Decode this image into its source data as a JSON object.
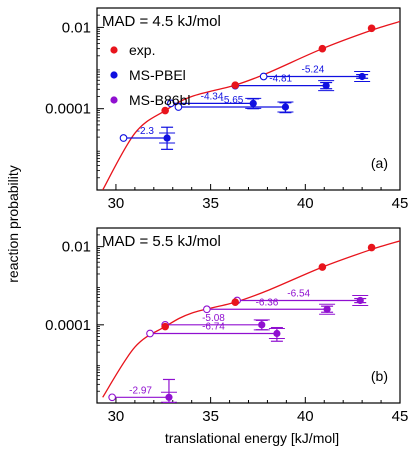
{
  "figure": {
    "ylabel": "reaction probability",
    "xlabel": "translational energy [kJ/mol]"
  },
  "chart_data": [
    {
      "type": "scatter",
      "panel_label": "(a)",
      "mad_text": "MAD = 4.5 kJ/mol",
      "x_ticks": [
        "30",
        "35",
        "40",
        "45"
      ],
      "y_ticks": [
        "0.01",
        "0.0001"
      ],
      "xlim": [
        29,
        45
      ],
      "ylim": [
        1e-06,
        0.03
      ],
      "y_scale": "log",
      "legend": {
        "placement": "top-left",
        "entries": [
          {
            "label": "exp.",
            "color": "#e8141c"
          },
          {
            "label": "MS-PBEl",
            "color": "#1010e0"
          },
          {
            "label": "MS-B86bl",
            "color": "#9010d0"
          }
        ]
      },
      "fit_curve": {
        "color": "#e8141c",
        "x": [
          29.3,
          31,
          32.6,
          34,
          36.3,
          38,
          40.9,
          43.5,
          45
        ],
        "y": [
          1e-06,
          2.5e-05,
          9e-05,
          0.0002,
          0.00038,
          0.00075,
          0.003,
          0.0085,
          0.014
        ]
      },
      "exp_points": {
        "x": [
          32.6,
          36.3,
          40.9,
          43.5
        ],
        "y": [
          9e-05,
          0.00038,
          0.003,
          0.0095
        ]
      },
      "series": [
        {
          "name": "MS-PBEl",
          "color": "#1010e0",
          "points": [
            {
              "x_shift": 30.4,
              "x_calc": 32.7,
              "y": 1.9e-05,
              "yerr_hi": 3.5e-05,
              "yerr_lo": 1e-05,
              "label": "-2.3"
            },
            {
              "x_shift": 32.9,
              "x_calc": 37.25,
              "y": 0.000135,
              "yerr_hi": 0.000175,
              "yerr_lo": 0.0001,
              "label": "-4.34"
            },
            {
              "x_shift": 33.3,
              "x_calc": 38.95,
              "y": 0.00011,
              "yerr_hi": 0.00014,
              "yerr_lo": 8e-05,
              "label": "-5.65"
            },
            {
              "x_shift": 36.3,
              "x_calc": 41.1,
              "y": 0.00037,
              "yerr_hi": 0.00044,
              "yerr_lo": 0.00031,
              "label": "-4.81"
            },
            {
              "x_shift": 37.8,
              "x_calc": 43.0,
              "y": 0.00062,
              "yerr_hi": 0.00069,
              "yerr_lo": 0.00056,
              "label": "-5.24"
            }
          ]
        }
      ]
    },
    {
      "type": "scatter",
      "panel_label": "(b)",
      "mad_text": "MAD = 5.5 kJ/mol",
      "x_ticks": [
        "30",
        "35",
        "40",
        "45"
      ],
      "y_ticks": [
        "0.01",
        "0.0001"
      ],
      "xlim": [
        29,
        45
      ],
      "ylim": [
        1e-06,
        0.03
      ],
      "y_scale": "log",
      "fit_curve": {
        "color": "#e8141c",
        "x": [
          29.3,
          31,
          32.6,
          34,
          36.3,
          38,
          40.9,
          43.5,
          45
        ],
        "y": [
          1.4e-06,
          2.7e-05,
          9e-05,
          0.0002,
          0.00038,
          0.00075,
          0.003,
          0.0085,
          0.014
        ]
      },
      "exp_points": {
        "x": [
          32.6,
          36.3,
          40.9,
          43.5
        ],
        "y": [
          9e-05,
          0.00038,
          0.003,
          0.0095
        ]
      },
      "series": [
        {
          "name": "MS-B86bl",
          "color": "#9010d0",
          "points": [
            {
              "x_shift": 29.8,
              "x_calc": 32.8,
              "y": 1.4e-06,
              "yerr_hi": 4e-06,
              "yerr_lo": 1e-06,
              "label": "-2.97"
            },
            {
              "x_shift": 31.8,
              "x_calc": 38.5,
              "y": 6e-05,
              "yerr_hi": 8.5e-05,
              "yerr_lo": 3.8e-05,
              "label": "-6.74"
            },
            {
              "x_shift": 32.6,
              "x_calc": 37.7,
              "y": 0.0001,
              "yerr_hi": 0.00013,
              "yerr_lo": 7.5e-05,
              "label": "-5.08"
            },
            {
              "x_shift": 34.8,
              "x_calc": 41.15,
              "y": 0.00025,
              "yerr_hi": 0.0003,
              "yerr_lo": 0.00021,
              "label": "-6.36"
            },
            {
              "x_shift": 36.4,
              "x_calc": 42.9,
              "y": 0.00042,
              "yerr_hi": 0.00047,
              "yerr_lo": 0.00037,
              "label": "-6.54"
            }
          ]
        }
      ]
    }
  ]
}
